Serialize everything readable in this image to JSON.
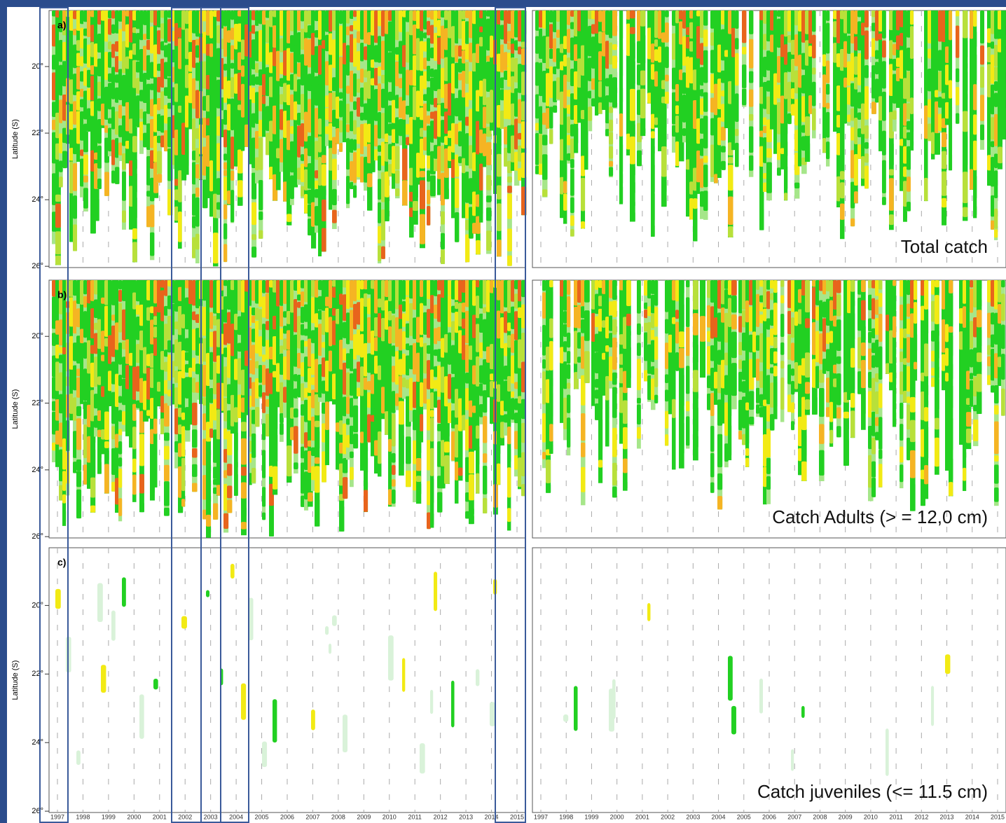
{
  "ylabel": "Latitude (S)",
  "panels": [
    {
      "label": "a)",
      "caption": "Total catch",
      "yticks": [
        "20°",
        "22°",
        "24°",
        "26°"
      ]
    },
    {
      "label": "b)",
      "caption": "Catch Adults (> = 12,0 cm)",
      "yticks": [
        "20°",
        "22°",
        "24°",
        "26°"
      ]
    },
    {
      "label": "c)",
      "caption": "Catch juveniles (<= 11.5 cm)",
      "yticks": [
        "20°",
        "22°",
        "24°",
        "26°"
      ]
    }
  ],
  "x_labels_left": [
    "1997",
    "1998",
    "1999",
    "2000",
    "2001",
    "2002",
    "2003",
    "2004",
    "2005",
    "2006",
    "2007",
    "2008",
    "2009",
    "2010",
    "2011",
    "2012",
    "2013",
    "2014",
    "2015"
  ],
  "x_labels_right": [
    "1997",
    "1998",
    "1999",
    "2000",
    "2001",
    "2002",
    "2003",
    "2004",
    "2005",
    "2006",
    "2007",
    "2008",
    "2009",
    "2010",
    "2011",
    "2012",
    "2013",
    "2014",
    "2015"
  ]
}
